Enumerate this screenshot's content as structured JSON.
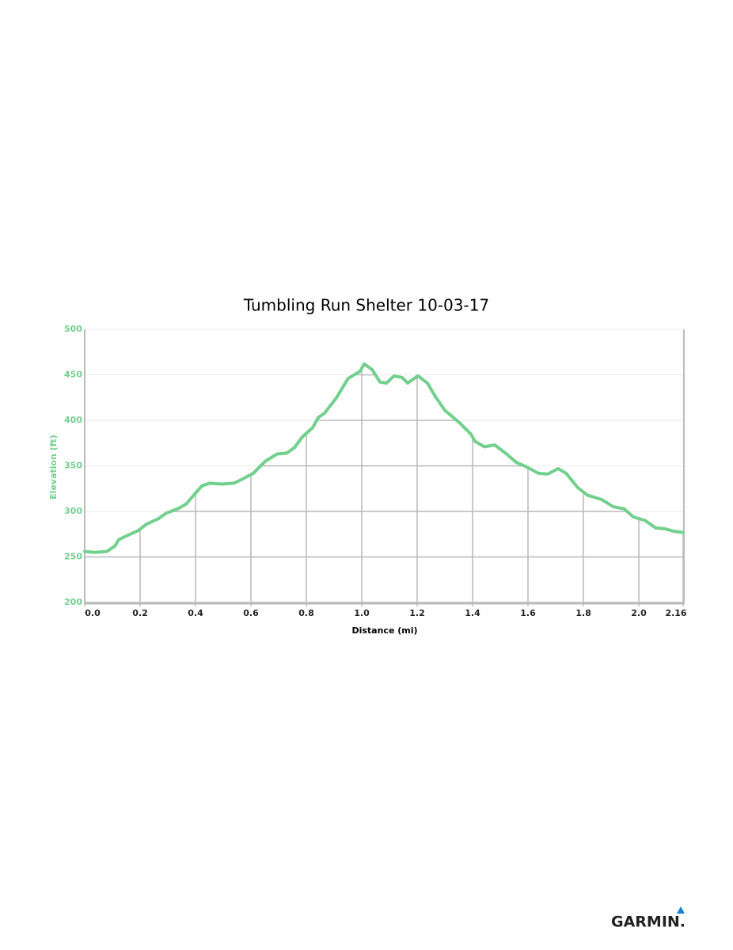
{
  "chart_data": {
    "type": "line",
    "title": "Tumbling Run Shelter 10-03-17",
    "x_label": "Distance (mi)",
    "y_label": "Elevation (ft)",
    "color": "#72d08d",
    "xlim": [
      0,
      2.16
    ],
    "xticks": [
      {
        "value": 0,
        "label": "0.0"
      },
      0.2,
      0.4,
      0.6,
      0.8,
      {
        "value": 1,
        "label": "1.0"
      },
      1.2,
      1.4,
      1.6,
      1.8,
      {
        "value": 2,
        "label": "2.0"
      },
      2.16
    ],
    "ylim": [
      200,
      500
    ],
    "yticks": [
      200,
      250,
      300,
      350,
      400,
      450,
      500
    ],
    "grid": true,
    "x": [
      0,
      0.037,
      0.08,
      0.109,
      0.123,
      0.151,
      0.194,
      0.223,
      0.266,
      0.294,
      0.337,
      0.366,
      0.394,
      0.423,
      0.451,
      0.494,
      0.537,
      0.566,
      0.609,
      0.651,
      0.694,
      0.729,
      0.757,
      0.786,
      0.823,
      0.843,
      0.866,
      0.909,
      0.951,
      0.994,
      1.009,
      1.037,
      1.066,
      1.089,
      1.117,
      1.146,
      1.166,
      1.203,
      1.237,
      1.266,
      1.3,
      1.351,
      1.394,
      1.409,
      1.443,
      1.48,
      1.523,
      1.557,
      1.594,
      1.637,
      1.671,
      1.709,
      1.737,
      1.78,
      1.814,
      1.866,
      1.909,
      1.946,
      1.98,
      2.023,
      2.06,
      2.094,
      2.129,
      2.16
    ],
    "values": [
      256,
      255,
      256,
      262,
      269,
      273,
      279,
      286,
      292,
      298,
      303,
      308,
      318,
      328,
      331,
      330,
      331,
      335,
      342,
      355,
      363,
      364,
      370,
      382,
      392,
      403,
      408,
      425,
      446,
      454,
      462,
      456,
      442,
      441,
      449,
      447,
      441,
      449,
      441,
      426,
      411,
      398,
      385,
      377,
      371,
      373,
      363,
      354,
      349,
      342,
      341,
      347,
      342,
      326,
      318,
      313,
      305,
      303,
      294,
      290,
      282,
      281,
      278,
      277
    ]
  },
  "logo": "GARMIN."
}
